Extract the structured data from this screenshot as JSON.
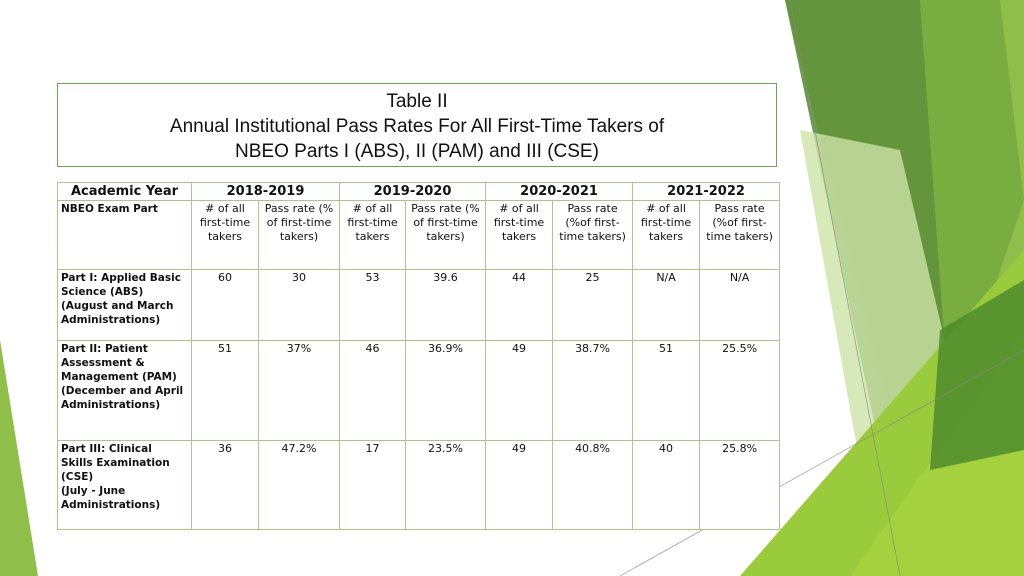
{
  "title_box": {
    "lines": [
      "Table II",
      "Annual Institutional Pass Rates For All First-Time Takers of",
      "NBEO Parts I (ABS), II (PAM) and III (CSE)"
    ]
  },
  "table": {
    "header": {
      "label": "Academic Year",
      "years": [
        "2018-2019",
        "2019-2020",
        "2020-2021",
        "2021-2022"
      ]
    },
    "subheader": {
      "label": "NBEO Exam Part",
      "columns": [
        "# of all first-time takers",
        "Pass rate (% of first-time takers)",
        "# of all first-time takers",
        "Pass rate (% of first-time takers)",
        "# of all first-time takers",
        "Pass rate (%of first-time takers)",
        "# of all first-time takers",
        "Pass rate (%of first-time takers)"
      ]
    },
    "rows": [
      {
        "label_lines": [
          "Part I: Applied Basic",
          "Science (ABS)",
          "(August and March",
          "Administrations)"
        ],
        "cells": [
          "60",
          "30",
          "53",
          "39.6",
          "44",
          "25",
          "N/A",
          "N/A"
        ]
      },
      {
        "label_lines": [
          "Part II: Patient",
          "Assessment &",
          "Management (PAM)",
          "(December and April",
          "Administrations)"
        ],
        "cells": [
          "51",
          "37%",
          "46",
          "36.9%",
          "49",
          "38.7%",
          "51",
          "25.5%"
        ]
      },
      {
        "label_lines": [
          "Part III: Clinical",
          "Skills Examination",
          "(CSE)",
          "(July - June",
          "Administrations)"
        ],
        "cells": [
          "36",
          "47.2%",
          "17",
          "23.5%",
          "49",
          "40.8%",
          "40",
          "25.8%"
        ]
      }
    ]
  }
}
